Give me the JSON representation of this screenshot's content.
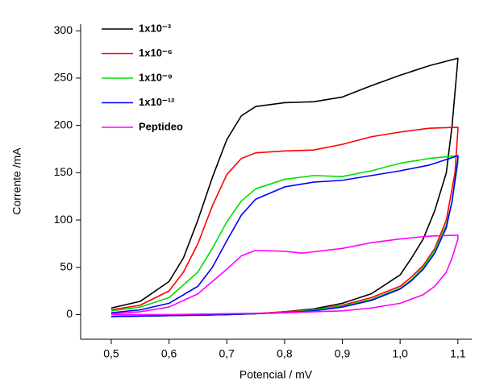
{
  "chart_data": {
    "type": "line",
    "xlabel": "Potencial / mV",
    "ylabel": "Corrente /mA",
    "xlim": [
      0.447,
      1.124
    ],
    "ylim": [
      -26,
      307
    ],
    "xticks": [
      {
        "value": 0.5,
        "label": "0,5"
      },
      {
        "value": 0.6,
        "label": "0,6"
      },
      {
        "value": 0.7,
        "label": "0,7"
      },
      {
        "value": 0.8,
        "label": "0,8"
      },
      {
        "value": 0.9,
        "label": "0,9"
      },
      {
        "value": 1.0,
        "label": "1,0"
      },
      {
        "value": 1.1,
        "label": "1,1"
      }
    ],
    "yticks": [
      0,
      50,
      100,
      150,
      200,
      250,
      300
    ],
    "legend": "upper left",
    "series": [
      {
        "name": "1x10⁻³",
        "color": "#000000",
        "x": [
          0.5,
          0.55,
          0.6,
          0.625,
          0.65,
          0.675,
          0.7,
          0.725,
          0.75,
          0.8,
          0.85,
          0.9,
          0.95,
          1.0,
          1.05,
          1.1,
          1.1,
          1.09,
          1.08,
          1.06,
          1.04,
          1.02,
          1.0,
          0.95,
          0.9,
          0.85,
          0.8,
          0.75,
          0.7,
          0.6,
          0.5
        ],
        "values": [
          7,
          14,
          35,
          60,
          100,
          145,
          185,
          210,
          220,
          224,
          225,
          230,
          242,
          253,
          263,
          271,
          270,
          200,
          150,
          110,
          80,
          60,
          42,
          22,
          12,
          6,
          3,
          1,
          0,
          -1,
          -2
        ]
      },
      {
        "name": "1x10⁻⁶",
        "color": "#ff0000",
        "x": [
          0.5,
          0.55,
          0.6,
          0.625,
          0.65,
          0.675,
          0.7,
          0.725,
          0.75,
          0.8,
          0.85,
          0.9,
          0.95,
          1.0,
          1.05,
          1.1,
          1.1,
          1.095,
          1.08,
          1.06,
          1.04,
          1.02,
          1.0,
          0.95,
          0.9,
          0.85,
          0.8,
          0.75,
          0.7,
          0.6,
          0.5
        ],
        "values": [
          5,
          10,
          25,
          45,
          75,
          115,
          148,
          165,
          171,
          173,
          174,
          180,
          188,
          193,
          197,
          198,
          195,
          150,
          100,
          70,
          52,
          40,
          30,
          18,
          10,
          5,
          3,
          1,
          0,
          -1,
          -2
        ]
      },
      {
        "name": "1x10⁻⁹",
        "color": "#00dd00",
        "x": [
          0.5,
          0.55,
          0.6,
          0.65,
          0.675,
          0.7,
          0.725,
          0.75,
          0.8,
          0.85,
          0.9,
          0.95,
          1.0,
          1.05,
          1.1,
          1.1,
          1.09,
          1.08,
          1.06,
          1.04,
          1.02,
          1.0,
          0.95,
          0.9,
          0.85,
          0.8,
          0.7,
          0.6,
          0.5
        ],
        "values": [
          4,
          8,
          18,
          45,
          70,
          98,
          120,
          133,
          143,
          147,
          146,
          152,
          160,
          165,
          168,
          160,
          120,
          95,
          68,
          50,
          37,
          28,
          16,
          9,
          5,
          2,
          0,
          -1,
          -2
        ]
      },
      {
        "name": "1x10⁻¹²",
        "color": "#0000ff",
        "x": [
          0.5,
          0.55,
          0.6,
          0.65,
          0.675,
          0.7,
          0.725,
          0.75,
          0.8,
          0.85,
          0.9,
          0.95,
          1.0,
          1.05,
          1.1,
          1.1,
          1.09,
          1.08,
          1.06,
          1.04,
          1.02,
          1.0,
          0.95,
          0.9,
          0.85,
          0.8,
          0.7,
          0.6,
          0.5
        ],
        "values": [
          2,
          5,
          12,
          30,
          50,
          78,
          105,
          122,
          135,
          140,
          142,
          147,
          152,
          158,
          168,
          165,
          120,
          92,
          65,
          48,
          36,
          27,
          15,
          8,
          4,
          2,
          0,
          -1,
          -2
        ]
      },
      {
        "name": "Peptideo",
        "color": "#ff00ff",
        "x": [
          0.5,
          0.55,
          0.6,
          0.65,
          0.7,
          0.725,
          0.75,
          0.8,
          0.83,
          0.9,
          0.95,
          1.0,
          1.05,
          1.1,
          1.1,
          1.09,
          1.08,
          1.06,
          1.04,
          1.0,
          0.95,
          0.9,
          0.8,
          0.7,
          0.6,
          0.5
        ],
        "values": [
          1,
          3,
          8,
          22,
          48,
          62,
          68,
          67,
          65,
          70,
          76,
          80,
          83,
          84,
          80,
          60,
          45,
          30,
          21,
          12,
          7,
          4,
          2,
          1,
          0,
          0
        ]
      }
    ]
  }
}
